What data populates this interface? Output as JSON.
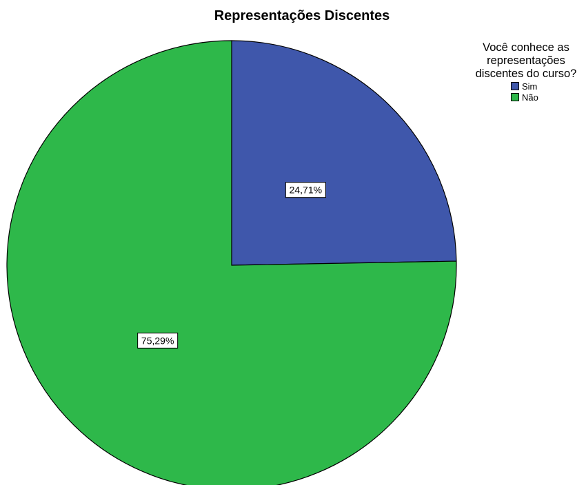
{
  "chart_data": {
    "type": "pie",
    "title": "Representações Discentes",
    "legend_title": "Você conhece as representações discentes do curso?",
    "legend_placement": "top-right",
    "slices": [
      {
        "label": "Sim",
        "value": 24.71,
        "value_label": "24,71%",
        "color": "#3f57ab"
      },
      {
        "label": "Não",
        "value": 75.29,
        "value_label": "75,29%",
        "color": "#2eb84a"
      }
    ]
  }
}
